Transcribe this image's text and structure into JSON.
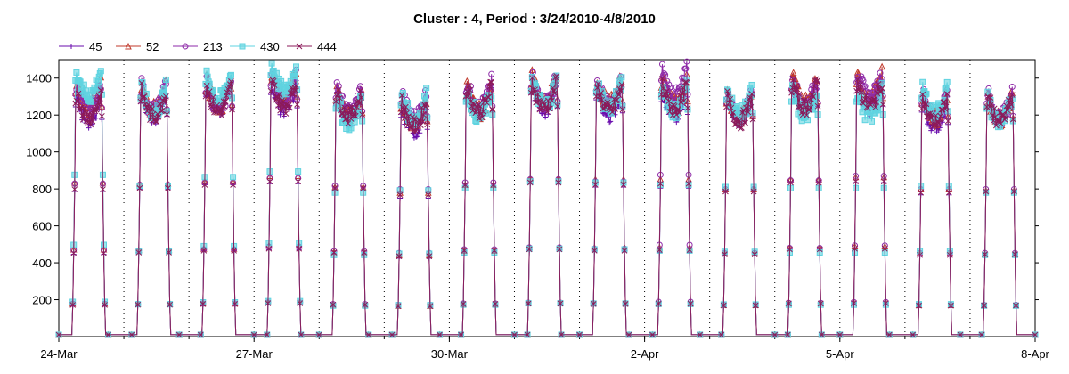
{
  "chart_data": {
    "type": "line",
    "title": "Cluster : 4, Period : 3/24/2010-4/8/2010",
    "xlabel": "",
    "ylabel": "",
    "x_range_days": [
      "2010-03-24",
      "2010-04-08"
    ],
    "xticks": [
      "24-Mar",
      "27-Mar",
      "30-Mar",
      "2-Apr",
      "5-Apr",
      "8-Apr"
    ],
    "yticks": [
      200,
      400,
      600,
      800,
      1000,
      1200,
      1400
    ],
    "ylim": [
      0,
      1500
    ],
    "grid": "vertical dotted lines at day boundaries",
    "legend_position": "top-left",
    "colors": {
      "45": "#6a0dad",
      "52": "#c0392b",
      "213": "#8e2aa8",
      "430": "#5fd3e0",
      "444": "#8b1a5a"
    },
    "series": [
      {
        "name": "45",
        "marker": "plus",
        "color": "#6a0dad",
        "daily_peak": [
          1310,
          1330,
          1370,
          1380,
          1320,
          1250,
          1360,
          1380,
          1350,
          1340,
          1320,
          1390,
          1390,
          1280,
          1320
        ]
      },
      {
        "name": "52",
        "marker": "triangle",
        "color": "#c0392b",
        "daily_peak": [
          1390,
          1380,
          1400,
          1450,
          1350,
          1300,
          1370,
          1430,
          1420,
          1420,
          1330,
          1420,
          1440,
          1330,
          1320
        ]
      },
      {
        "name": "213",
        "marker": "circle",
        "color": "#8e2aa8",
        "daily_peak": [
          1380,
          1370,
          1390,
          1430,
          1360,
          1330,
          1390,
          1420,
          1400,
          1460,
          1330,
          1410,
          1450,
          1330,
          1330
        ]
      },
      {
        "name": "430",
        "marker": "square",
        "color": "#5fd3e0",
        "daily_peak": [
          1460,
          1360,
          1440,
          1490,
          1300,
          1320,
          1340,
          1400,
          1390,
          1370,
          1350,
          1340,
          1340,
          1360,
          1300
        ]
      },
      {
        "name": "444",
        "marker": "cross",
        "color": "#8b1a5a",
        "daily_peak": [
          1330,
          1340,
          1370,
          1400,
          1340,
          1280,
          1370,
          1390,
          1370,
          1380,
          1310,
          1390,
          1400,
          1300,
          1310
        ]
      }
    ]
  }
}
